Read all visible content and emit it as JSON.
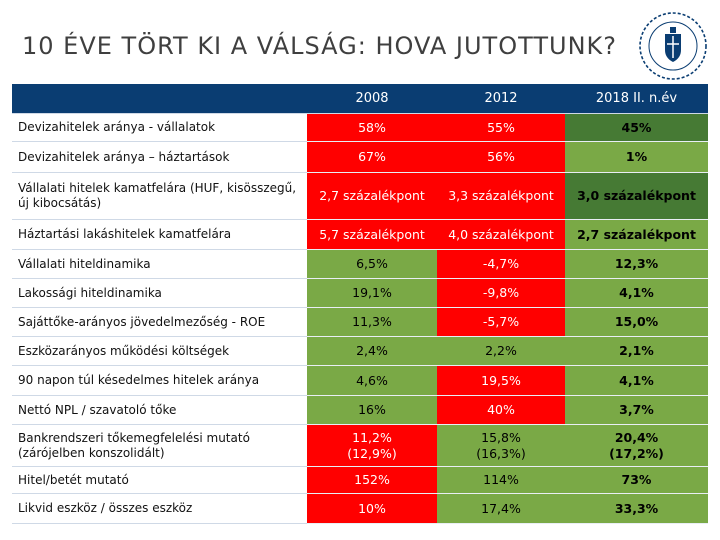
{
  "title": "10 ÉVE TÖRT KI A VÁLSÁG: HOVA JUTOTTUNK?",
  "seal_icon": "mnb-seal-icon",
  "colors": {
    "header_bg": "#0a3d72",
    "red": "#ff0000",
    "dark_green": "#467a34",
    "green": "#7aa946"
  },
  "table": {
    "columns": [
      "2008",
      "2012",
      "2018 II. n.év"
    ],
    "rows": [
      {
        "label": "Devizahitelek aránya - vállalatok",
        "values": [
          "58%",
          "55%",
          "45%"
        ],
        "colors": [
          "red",
          "red",
          "dark_green"
        ]
      },
      {
        "label": "Devizahitelek aránya – háztartások",
        "values": [
          "67%",
          "56%",
          "1%"
        ],
        "colors": [
          "red",
          "red",
          "green"
        ]
      },
      {
        "label": "Vállalati hitelek kamatfelára (HUF, kisösszegű, új kibocsátás)",
        "values": [
          "2,7 százalékpont",
          "3,3 százalékpont",
          "3,0 százalékpont"
        ],
        "colors": [
          "red",
          "red",
          "dark_green"
        ]
      },
      {
        "label": "Háztartási lakáshitelek kamatfelára",
        "values": [
          "5,7 százalékpont",
          "4,0 százalékpont",
          "2,7 százalékpont"
        ],
        "colors": [
          "red",
          "red",
          "green"
        ]
      },
      {
        "label": "Vállalati hiteldinamika",
        "values": [
          "6,5%",
          "-4,7%",
          "12,3%"
        ],
        "colors": [
          "green",
          "red",
          "green"
        ]
      },
      {
        "label": "Lakossági hiteldinamika",
        "values": [
          "19,1%",
          "-9,8%",
          "4,1%"
        ],
        "colors": [
          "green",
          "red",
          "green"
        ]
      },
      {
        "label": "Sajáttőke-arányos jövedelmezőség - ROE",
        "values": [
          "11,3%",
          "-5,7%",
          "15,0%"
        ],
        "colors": [
          "green",
          "red",
          "green"
        ]
      },
      {
        "label": "Eszközarányos működési költségek",
        "values": [
          "2,4%",
          "2,2%",
          "2,1%"
        ],
        "colors": [
          "green",
          "green",
          "green"
        ]
      },
      {
        "label": "90 napon túl késedelmes hitelek aránya",
        "values": [
          "4,6%",
          "19,5%",
          "4,1%"
        ],
        "colors": [
          "green",
          "red",
          "green"
        ]
      },
      {
        "label": "Nettó NPL / szavatoló tőke",
        "values": [
          "16%",
          "40%",
          "3,7%"
        ],
        "colors": [
          "green",
          "red",
          "green"
        ]
      },
      {
        "label": "Bankrendszeri tőkemegfelelési mutató (zárójelben konszolidált)",
        "values": [
          "11,2%\n(12,9%)",
          "15,8%\n(16,3%)",
          "20,4%\n(17,2%)"
        ],
        "colors": [
          "red",
          "green",
          "green"
        ]
      },
      {
        "label": "Hitel/betét mutató",
        "values": [
          "152%",
          "114%",
          "73%"
        ],
        "colors": [
          "red",
          "green",
          "green"
        ]
      },
      {
        "label": "Likvid eszköz / összes eszköz",
        "values": [
          "10%",
          "17,4%",
          "33,3%"
        ],
        "colors": [
          "red",
          "green",
          "green"
        ]
      }
    ]
  }
}
